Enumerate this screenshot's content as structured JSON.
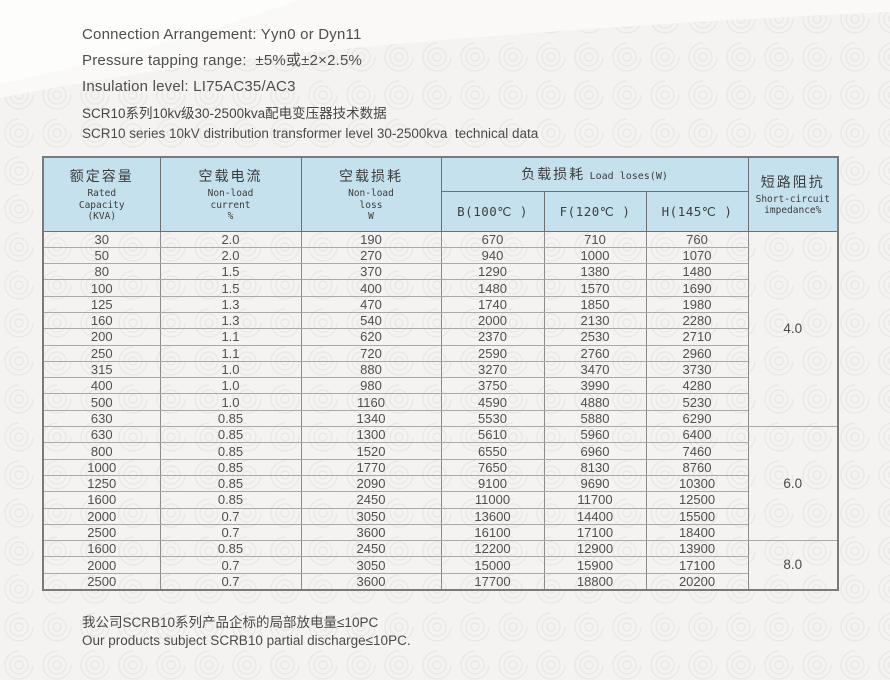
{
  "colors": {
    "header_bg": "#c5e1ee",
    "table_border": "#7a7a7a",
    "page_bg": "#f4f3f1",
    "text": "#4d4d4d"
  },
  "intro": {
    "lines": [
      "Connection Arrangement: Yyn0 or Dyn11",
      "Pressure tapping range:  ±5%或±2×2.5%",
      "Insulation level: LI75AC35/AC3"
    ]
  },
  "title": {
    "zh": "SCR10系列10kv级30-2500kva配电变压器技术数据",
    "en": "SCR10 series 10kV distribution transformer level 30-2500kva  technical data"
  },
  "table": {
    "columns": {
      "capacity": {
        "zh": "额定容量",
        "en": "Rated\nCapacity\n(KVA)"
      },
      "current": {
        "zh": "空载电流",
        "en": "Non-load\ncurrent\n%"
      },
      "loss": {
        "zh": "空载损耗",
        "en": "Non-load\nloss\nW"
      },
      "load_loss": {
        "zh": "负载损耗",
        "en": "Load  loses(W)"
      },
      "sub": [
        "B(100℃ )",
        "F(120℃ )",
        "H(145℃ )"
      ],
      "impedance": {
        "zh": "短路阻抗",
        "en": "Short-circuit\nimpedance%"
      }
    },
    "groups": [
      {
        "impedance": "4.0",
        "rows": [
          [
            "30",
            "2.0",
            "190",
            "670",
            "710",
            "760"
          ],
          [
            "50",
            "2.0",
            "270",
            "940",
            "1000",
            "1070"
          ],
          [
            "80",
            "1.5",
            "370",
            "1290",
            "1380",
            "1480"
          ],
          [
            "100",
            "1.5",
            "400",
            "1480",
            "1570",
            "1690"
          ],
          [
            "125",
            "1.3",
            "470",
            "1740",
            "1850",
            "1980"
          ],
          [
            "160",
            "1.3",
            "540",
            "2000",
            "2130",
            "2280"
          ],
          [
            "200",
            "1.1",
            "620",
            "2370",
            "2530",
            "2710"
          ],
          [
            "250",
            "1.1",
            "720",
            "2590",
            "2760",
            "2960"
          ],
          [
            "315",
            "1.0",
            "880",
            "3270",
            "3470",
            "3730"
          ],
          [
            "400",
            "1.0",
            "980",
            "3750",
            "3990",
            "4280"
          ],
          [
            "500",
            "1.0",
            "1160",
            "4590",
            "4880",
            "5230"
          ],
          [
            "630",
            "0.85",
            "1340",
            "5530",
            "5880",
            "6290"
          ]
        ]
      },
      {
        "impedance": "6.0",
        "rows": [
          [
            "630",
            "0.85",
            "1300",
            "5610",
            "5960",
            "6400"
          ],
          [
            "800",
            "0.85",
            "1520",
            "6550",
            "6960",
            "7460"
          ],
          [
            "1000",
            "0.85",
            "1770",
            "7650",
            "8130",
            "8760"
          ],
          [
            "1250",
            "0.85",
            "2090",
            "9100",
            "9690",
            "10300"
          ],
          [
            "1600",
            "0.85",
            "2450",
            "11000",
            "11700",
            "12500"
          ],
          [
            "2000",
            "0.7",
            "3050",
            "13600",
            "14400",
            "15500"
          ],
          [
            "2500",
            "0.7",
            "3600",
            "16100",
            "17100",
            "18400"
          ]
        ]
      },
      {
        "impedance": "8.0",
        "rows": [
          [
            "1600",
            "0.85",
            "2450",
            "12200",
            "12900",
            "13900"
          ],
          [
            "2000",
            "0.7",
            "3050",
            "15000",
            "15900",
            "17100"
          ],
          [
            "2500",
            "0.7",
            "3600",
            "17700",
            "18800",
            "20200"
          ]
        ]
      }
    ]
  },
  "footer": {
    "zh": "我公司SCRB10系列产品企标的局部放电量≤10PC",
    "en": "Our products subject SCRB10 partial discharge≤10PC."
  }
}
